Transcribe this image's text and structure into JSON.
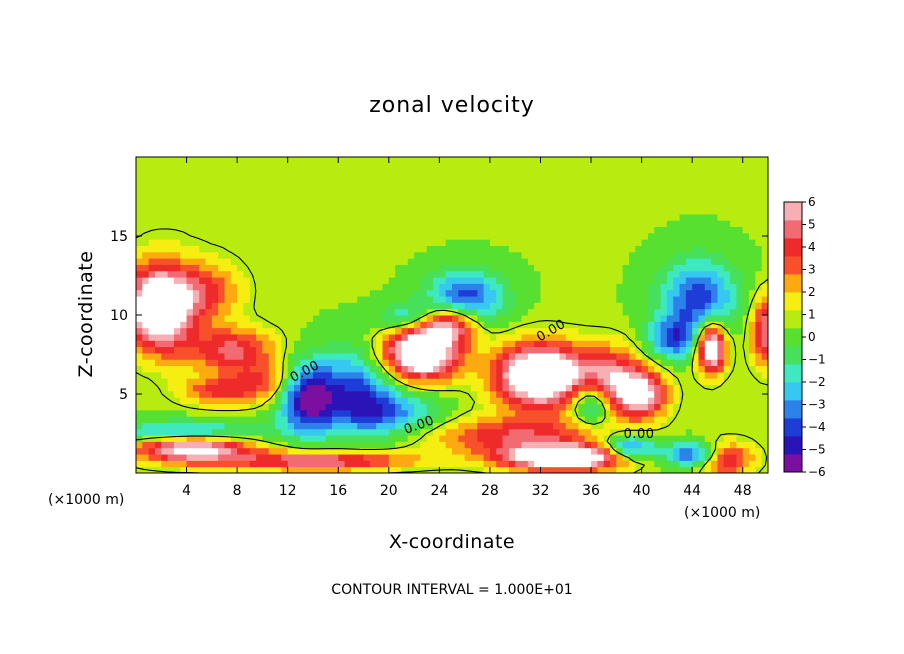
{
  "chart_data": {
    "type": "heatmap",
    "title": "zonal velocity",
    "xlabel": "X-coordinate",
    "ylabel": "Z-coordinate",
    "x_unit_note_left": "(×1000 m)",
    "x_unit_note_right": "(×1000 m)",
    "xlim": [
      0,
      50
    ],
    "ylim": [
      0,
      20
    ],
    "x_ticks": [
      4,
      8,
      12,
      16,
      20,
      24,
      28,
      32,
      36,
      40,
      44,
      48
    ],
    "y_ticks": [
      5,
      10,
      15
    ],
    "colorbar": {
      "ticks": [
        6,
        5,
        4,
        3,
        2,
        1,
        0,
        -1,
        -2,
        -3,
        -4,
        -5,
        -6
      ],
      "range": [
        -6,
        6
      ],
      "colors": [
        "#7a0fa0",
        "#2a14b8",
        "#1e3cd6",
        "#2c82ea",
        "#36c8f0",
        "#3ee8c0",
        "#46e05a",
        "#58e030",
        "#b8ec10",
        "#f6ee10",
        "#fcaa10",
        "#f8502a",
        "#ee2a2a",
        "#f26a72",
        "#f6b0b4"
      ]
    },
    "contour_labels": [
      "0.00",
      "0.00",
      "0.00",
      "0.00"
    ],
    "footer": "CONTOUR INTERVAL = 1.000E+01",
    "blobs": [
      {
        "x": 1.8,
        "z": 10.5,
        "sx": 2.6,
        "sz": 2.6,
        "v": 8.5
      },
      {
        "x": 5.5,
        "z": 11.5,
        "sx": 2.8,
        "sz": 1.8,
        "v": 3.2
      },
      {
        "x": 7.5,
        "z": 7.8,
        "sx": 3.5,
        "sz": 1.4,
        "v": 4.2
      },
      {
        "x": 6.5,
        "z": 5.2,
        "sx": 3.0,
        "sz": 0.9,
        "v": 3.2
      },
      {
        "x": 10.5,
        "z": 5.8,
        "sx": 3.0,
        "sz": 1.2,
        "v": 2.8
      },
      {
        "x": 4.5,
        "z": 1.6,
        "sx": 4.5,
        "sz": 0.9,
        "v": 6.8
      },
      {
        "x": 14.5,
        "z": 0.8,
        "sx": 7.0,
        "sz": 0.6,
        "v": 5.0
      },
      {
        "x": 13.5,
        "z": 4.8,
        "sx": 2.2,
        "sz": 2.2,
        "v": -6.2
      },
      {
        "x": 17.5,
        "z": 5.2,
        "sx": 3.0,
        "sz": 2.6,
        "v": -4.2
      },
      {
        "x": 20.5,
        "z": 3.8,
        "sx": 4.0,
        "sz": 1.4,
        "v": -3.0
      },
      {
        "x": 4.0,
        "z": 2.6,
        "sx": 6.0,
        "sz": 0.7,
        "v": -3.8
      },
      {
        "x": 22.5,
        "z": 7.6,
        "sx": 3.0,
        "sz": 1.7,
        "v": 8.5
      },
      {
        "x": 24.5,
        "z": 9.5,
        "sx": 2.5,
        "sz": 1.2,
        "v": 6.5
      },
      {
        "x": 26.0,
        "z": 11.0,
        "sx": 3.0,
        "sz": 1.8,
        "v": -4.8
      },
      {
        "x": 22.0,
        "z": 9.8,
        "sx": 2.5,
        "sz": 1.0,
        "v": -3.8
      },
      {
        "x": 32.0,
        "z": 6.2,
        "sx": 3.5,
        "sz": 2.0,
        "v": 8.8
      },
      {
        "x": 37.5,
        "z": 6.0,
        "sx": 2.5,
        "sz": 2.0,
        "v": 4.5
      },
      {
        "x": 40.0,
        "z": 5.0,
        "sx": 2.0,
        "sz": 1.5,
        "v": 5.8
      },
      {
        "x": 36.0,
        "z": 4.5,
        "sx": 1.6,
        "sz": 1.4,
        "v": -4.0
      },
      {
        "x": 30.0,
        "z": 2.4,
        "sx": 7.0,
        "sz": 1.2,
        "v": 3.8
      },
      {
        "x": 34.0,
        "z": 1.0,
        "sx": 5.0,
        "sz": 0.8,
        "v": 8.2
      },
      {
        "x": 39.0,
        "z": 1.6,
        "sx": 2.0,
        "sz": 0.8,
        "v": -5.0
      },
      {
        "x": 44.5,
        "z": 1.2,
        "sx": 2.8,
        "sz": 0.8,
        "v": -5.5
      },
      {
        "x": 46.5,
        "z": 1.0,
        "sx": 2.2,
        "sz": 1.0,
        "v": 6.0
      },
      {
        "x": 44.5,
        "z": 11.0,
        "sx": 3.0,
        "sz": 2.5,
        "v": -4.6
      },
      {
        "x": 42.5,
        "z": 8.5,
        "sx": 2.0,
        "sz": 1.3,
        "v": -3.8
      },
      {
        "x": 45.5,
        "z": 8.0,
        "sx": 1.2,
        "sz": 1.6,
        "v": 8.0
      },
      {
        "x": 50.0,
        "z": 9.0,
        "sx": 1.4,
        "sz": 2.2,
        "v": 5.0
      },
      {
        "x": 8.0,
        "z": 17.0,
        "sx": 10.0,
        "sz": 3.0,
        "v": 0.4
      }
    ]
  }
}
